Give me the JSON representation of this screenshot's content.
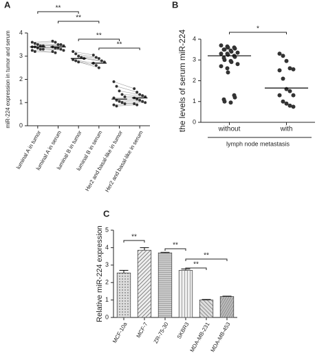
{
  "chart_data": [
    {
      "panel": "A",
      "type": "dot",
      "paired": true,
      "ylabel": "miR-224 expression in tumor and serum",
      "categories": [
        "luminal A in tumor",
        "luminal A in serum",
        "luminal B in tumor",
        "luminal B in serum",
        "Her2 and basal-like in tumor",
        "Her2 and basal-like in serum"
      ],
      "values": [
        [
          3.6,
          3.55,
          3.5,
          3.45,
          3.45,
          3.4,
          3.4,
          3.35,
          3.3,
          3.3,
          3.25,
          3.2
        ],
        [
          3.65,
          3.6,
          3.5,
          3.5,
          3.45,
          3.4,
          3.35,
          3.35,
          3.3,
          3.25,
          3.2,
          3.15
        ],
        [
          3.2,
          3.1,
          3.0,
          2.95,
          2.9,
          2.85,
          2.8,
          2.75
        ],
        [
          3.05,
          2.95,
          2.9,
          2.8,
          2.75,
          2.7,
          2.6,
          2.5
        ],
        [
          1.9,
          1.7,
          1.5,
          1.35,
          1.25,
          1.2,
          1.1,
          1.05,
          1.0,
          0.95,
          0.9,
          0.85
        ],
        [
          1.6,
          1.45,
          1.35,
          1.3,
          1.25,
          1.2,
          1.15,
          1.1,
          1.05,
          1.0,
          0.95,
          0.9
        ]
      ],
      "means": [
        3.4,
        3.4,
        2.9,
        2.7,
        1.15,
        1.2
      ],
      "color": "#333333",
      "ylim": [
        0,
        4
      ],
      "yticks": [
        0,
        1,
        2,
        3,
        4
      ],
      "annotations": [
        {
          "text": "**",
          "from": "luminal A in tumor",
          "to": "luminal B in tumor"
        },
        {
          "text": "**",
          "from": "luminal A in serum",
          "to": "luminal B in serum"
        },
        {
          "text": "**",
          "from": "luminal B in tumor",
          "to": "Her2 and basal-like in tumor"
        },
        {
          "text": "**",
          "from": "luminal B in serum",
          "to": "Her2 and basal-like in serum"
        }
      ]
    },
    {
      "panel": "B",
      "type": "dot",
      "paired": false,
      "ylabel": "the levels of serum miR-224",
      "xlabel": "lymph node metastasis",
      "categories": [
        "without",
        "with"
      ],
      "values": [
        [
          3.7,
          3.65,
          3.6,
          3.6,
          3.55,
          3.5,
          3.5,
          3.45,
          3.4,
          3.35,
          3.3,
          3.3,
          3.25,
          3.2,
          3.15,
          3.1,
          3.0,
          2.95,
          2.9,
          2.8,
          2.7,
          2.6,
          2.4,
          1.3,
          1.2,
          1.1,
          1.0,
          0.95
        ],
        [
          3.3,
          3.2,
          2.95,
          2.6,
          2.55,
          2.5,
          2.1,
          1.6,
          1.5,
          1.3,
          1.3,
          1.0,
          0.9,
          0.8,
          0.75
        ]
      ],
      "means": [
        3.2,
        1.65
      ],
      "color": "#333333",
      "ylim": [
        0,
        4
      ],
      "yticks": [
        0,
        1,
        2,
        3,
        4
      ],
      "annotations": [
        {
          "text": "*",
          "from": "without",
          "to": "with"
        }
      ]
    },
    {
      "panel": "C",
      "type": "bar",
      "ylabel": "Relative miR-224 expression",
      "categories": [
        "MCF-10a",
        "MCF-7",
        "ZR-75-30",
        "SKBR3",
        "MDA-MB-231",
        "MDA-MB-453"
      ],
      "values": [
        2.55,
        3.85,
        3.7,
        2.7,
        1.0,
        1.2
      ],
      "errors": [
        0.15,
        0.15,
        0.03,
        0.08,
        0.03,
        0.02
      ],
      "color": "#444444",
      "ylim": [
        0,
        5
      ],
      "yticks": [
        0,
        1,
        2,
        3,
        4,
        5
      ],
      "annotations": [
        {
          "text": "**",
          "from": "MCF-10a",
          "to": "MCF-7"
        },
        {
          "text": "**",
          "from": "ZR-75-30",
          "to": "SKBR3"
        },
        {
          "text": "**",
          "from": "SKBR3",
          "to": "MDA-MB-231"
        },
        {
          "text": "**",
          "from": "SKBR3",
          "to": "MDA-MB-453"
        }
      ]
    }
  ]
}
